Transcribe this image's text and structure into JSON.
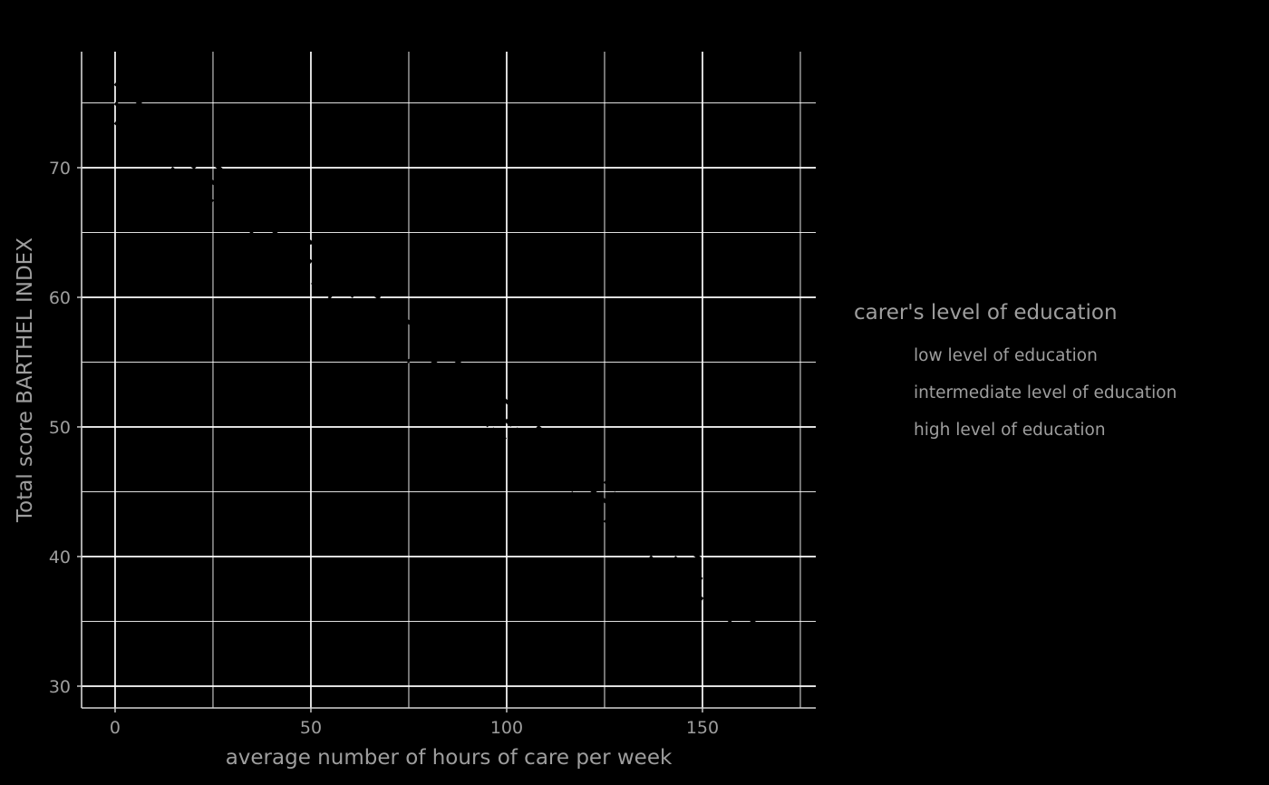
{
  "chart_data": {
    "type": "line",
    "title": "",
    "xlabel": "average number of hours of care per week",
    "ylabel": "Total score BARTHEL INDEX",
    "xlim": [
      -8.56,
      178.94
    ],
    "ylim": [
      28.32,
      78.95
    ],
    "x_major_ticks": [
      0,
      50,
      100,
      150
    ],
    "x_minor_ticks": [
      25,
      75,
      125,
      175
    ],
    "y_major_ticks": [
      30,
      40,
      50,
      60,
      70
    ],
    "y_minor_ticks": [
      35,
      45,
      55,
      65,
      75
    ],
    "grid": true,
    "legend": {
      "title": "carer's level of education",
      "position": "right",
      "entries": [
        "low level of education",
        "intermediate level of education",
        "high level of education"
      ]
    },
    "series": [
      {
        "name": "low level of education",
        "linetype": "longdash",
        "color": "#000000",
        "x": [
          0,
          165
        ],
        "y": [
          76.5,
          36.0
        ]
      },
      {
        "name": "intermediate level of education",
        "linetype": "dashed",
        "color": "#000000",
        "x": [
          0,
          165
        ],
        "y": [
          75.0,
          34.5
        ]
      },
      {
        "name": "high level of education",
        "linetype": "dotted",
        "color": "#000000",
        "x": [
          0,
          165
        ],
        "y": [
          73.5,
          33.0
        ]
      }
    ],
    "colors": {
      "background": "#000000",
      "panel": "#000000",
      "grid": "#ffffff",
      "axis": "#d4d4d4",
      "text": "#9e9e9e",
      "series": "#000000"
    }
  }
}
